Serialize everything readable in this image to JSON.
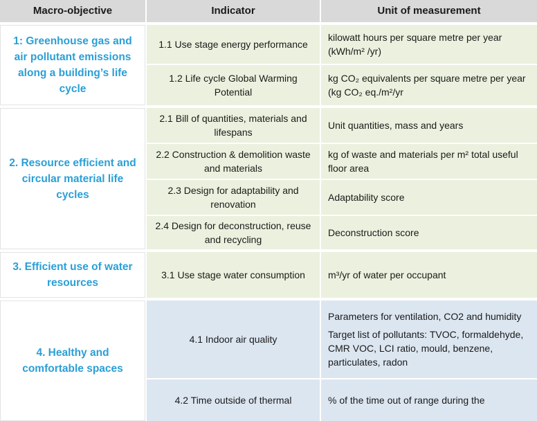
{
  "table": {
    "header": [
      "Macro-objective",
      "Indicator",
      "Unit of measurement"
    ],
    "groups": [
      {
        "objective": "1: Greenhouse gas and air pollutant emissions along a building’s life cycle",
        "rows": [
          {
            "indicator": "1.1  Use stage energy performance",
            "unit": [
              "kilowatt hours per square metre per year (kWh/m² /yr)"
            ]
          },
          {
            "indicator": "1.2 Life cycle Global Warming Potential",
            "unit": [
              "kg CO₂ equivalents per square metre per year (kg CO₂ eq./m²/yr"
            ]
          }
        ]
      },
      {
        "objective": "2. Resource efficient and circular material life cycles",
        "rows": [
          {
            "indicator": "2.1 Bill of quantities, materials and lifespans",
            "unit": [
              "Unit quantities, mass and years"
            ]
          },
          {
            "indicator": "2.2 Construction & demolition waste and materials",
            "unit": [
              "kg of waste and materials per m² total useful floor area"
            ]
          },
          {
            "indicator": "2.3 Design for adaptability and renovation",
            "unit": [
              "Adaptability score"
            ]
          },
          {
            "indicator": "2.4 Design for deconstruction, reuse and recycling",
            "unit": [
              "Deconstruction score"
            ]
          }
        ]
      },
      {
        "objective": "3. Efficient use of water resources",
        "rows": [
          {
            "indicator": "3.1 Use stage water consumption",
            "unit": [
              "m³/yr of water per occupant"
            ]
          }
        ]
      },
      {
        "objective": "4. Healthy and comfortable spaces",
        "rows": [
          {
            "indicator": "4.1  Indoor air quality",
            "unit": [
              "Parameters for ventilation, CO2 and humidity",
              "Target list of pollutants: TVOC, formaldehyde, CMR VOC, LCI ratio, mould, benzene, particulates, radon"
            ]
          },
          {
            "indicator": "4.2  Time outside of thermal",
            "unit": [
              "% of the time out of range during the"
            ]
          }
        ]
      }
    ]
  }
}
